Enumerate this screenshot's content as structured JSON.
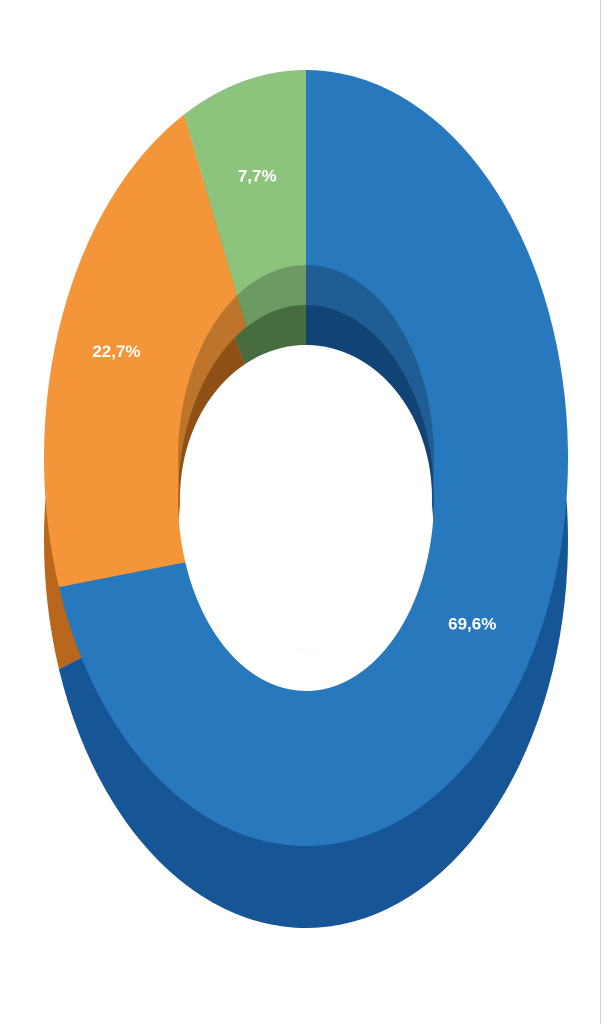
{
  "chart_data": {
    "type": "pie",
    "style": "donut-3d",
    "labels": [
      "",
      "",
      ""
    ],
    "values": [
      69.6,
      22.7,
      7.7
    ],
    "data_labels": [
      "69,6%",
      "22,7%",
      "7,7%"
    ],
    "colors": [
      "#2878BE",
      "#F39538",
      "#8CC47E"
    ],
    "side_colors": [
      "#175696",
      "#B8671D",
      "#5A8B53"
    ],
    "title": "",
    "legend": "none"
  }
}
